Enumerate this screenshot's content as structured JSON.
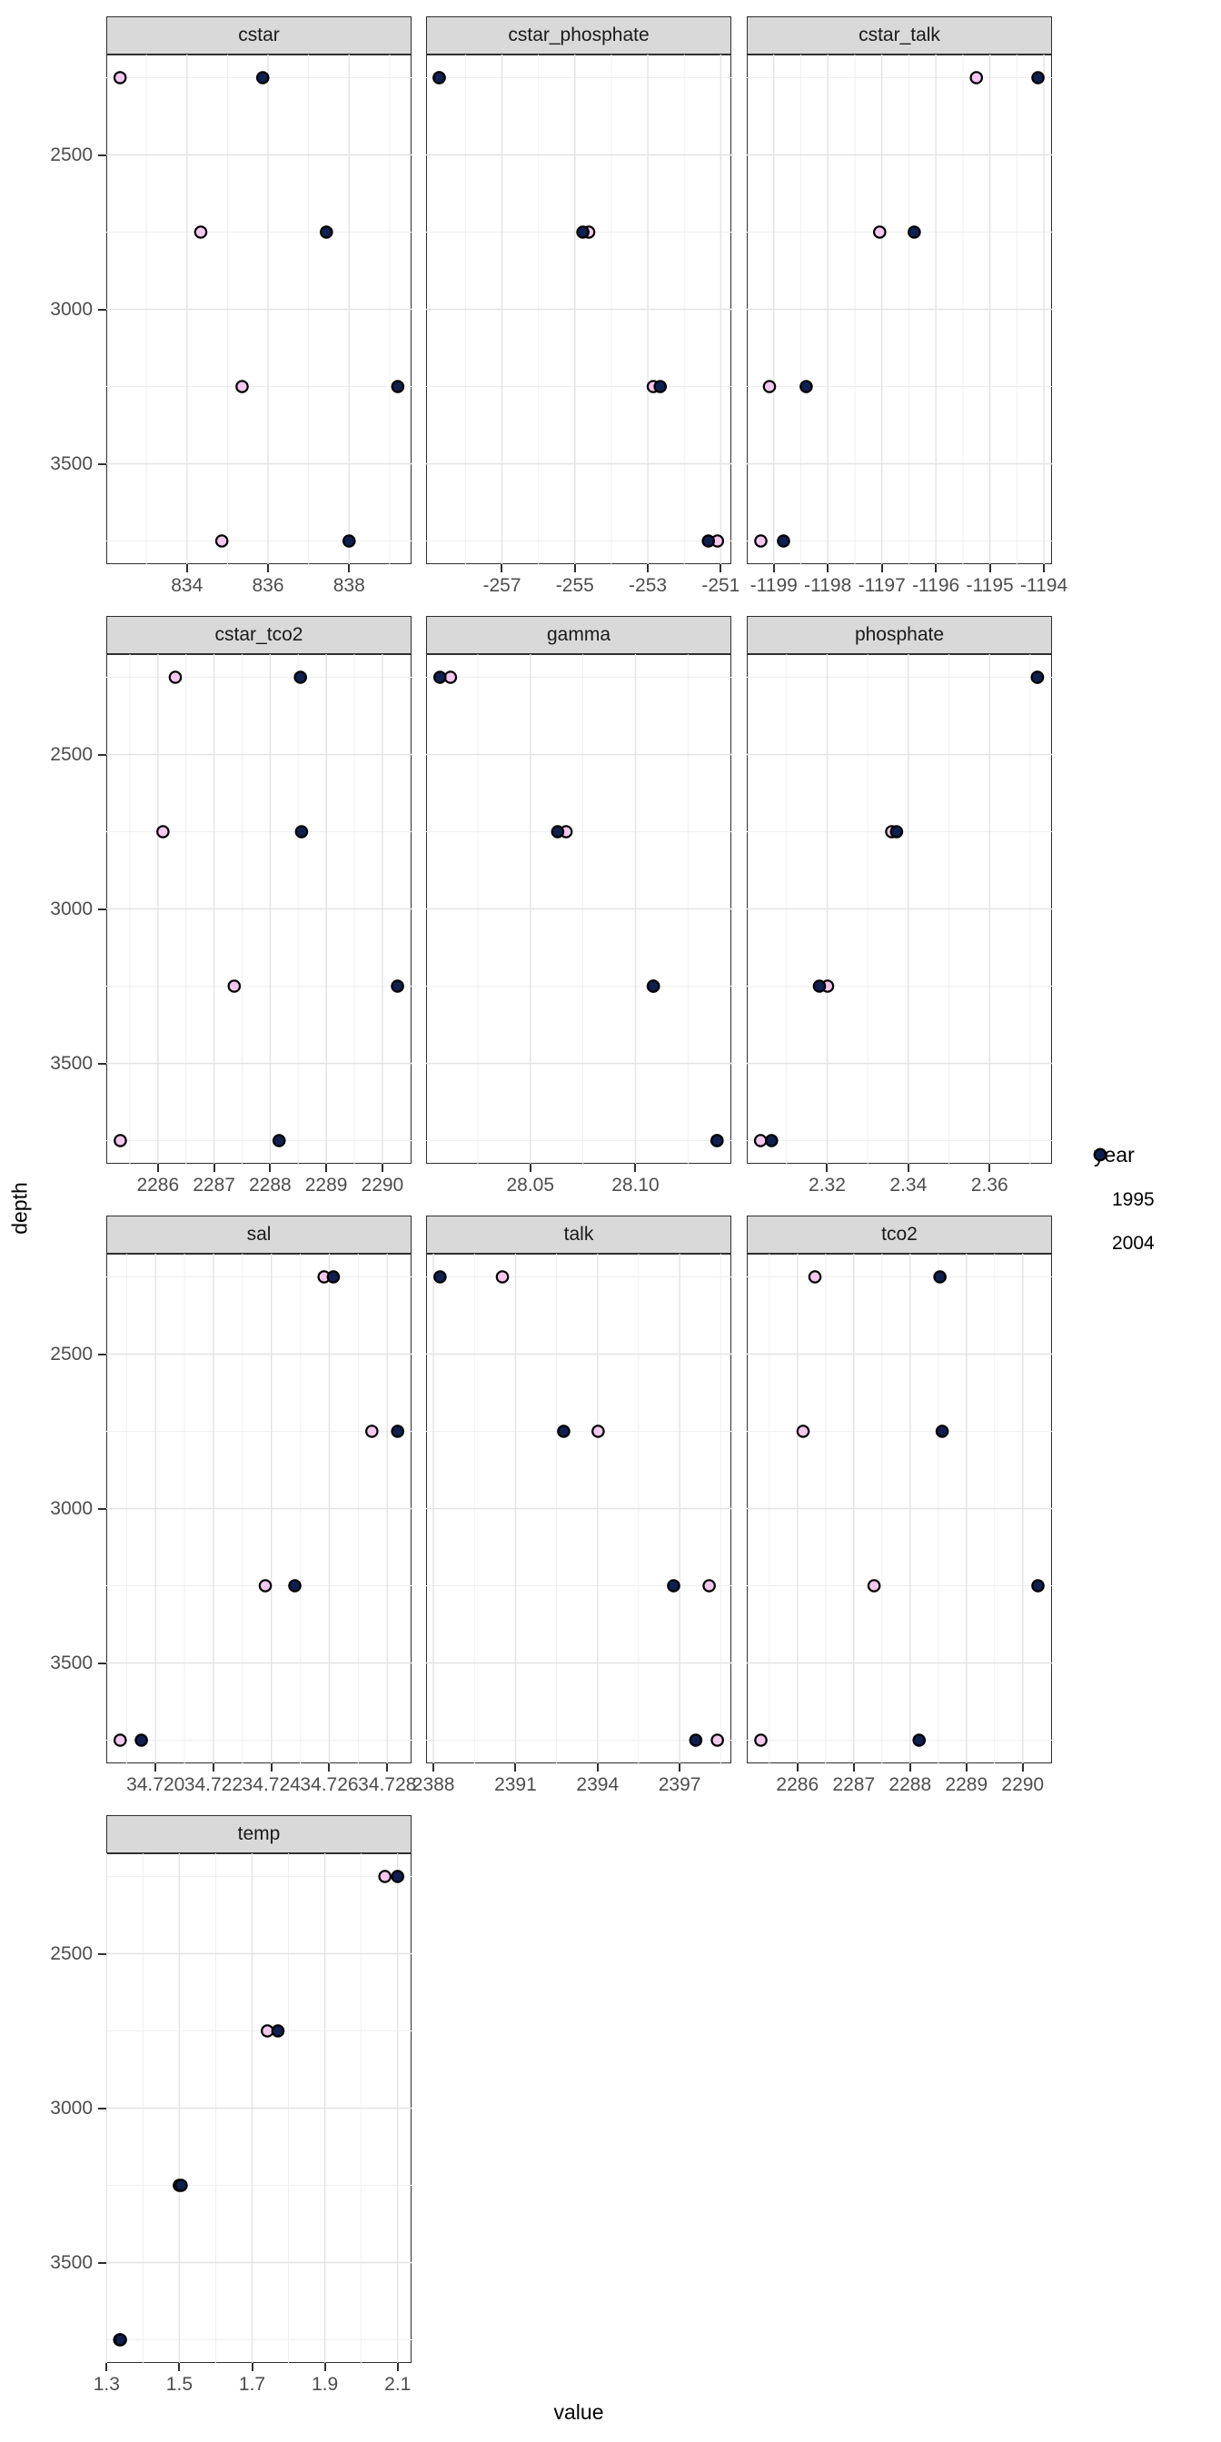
{
  "axes": {
    "x_label": "value",
    "y_label": "depth",
    "y_ticks": [
      "2500",
      "3000",
      "3500"
    ],
    "y_tick_values": [
      2500,
      3000,
      3500
    ],
    "y_minor_values": [
      2250,
      2750,
      3250,
      3750
    ],
    "y_domain": [
      2175,
      3825
    ]
  },
  "legend": {
    "title": "year",
    "items": [
      {
        "label": "1995",
        "fill": "#f4c7ee"
      },
      {
        "label": "2004",
        "fill": "#0f1f4f"
      }
    ]
  },
  "colors": {
    "point_stroke": "#000000",
    "panel_border": "#2f2f2f",
    "strip_fill": "#d9d9d9",
    "grid_major": "#e3e3e3",
    "grid_minor": "#efefef",
    "tick_label": "#4d4d4d"
  },
  "chart_data": {
    "type": "scatter",
    "facet_variable": "key",
    "x_label": "value",
    "y_label": "depth",
    "y_reversed": true,
    "depths": [
      2250,
      2750,
      3250,
      3750
    ],
    "series_names": [
      "1995",
      "2004"
    ],
    "series_colors": {
      "1995": "#f4c7ee",
      "2004": "#0f1f4f"
    },
    "facets": [
      {
        "name": "cstar",
        "xdomain": [
          832.01,
          839.54
        ],
        "ticks": [
          {
            "v": 834,
            "label": "834"
          },
          {
            "v": 836,
            "label": "836"
          },
          {
            "v": 838,
            "label": "838"
          }
        ],
        "minor": [
          833,
          835,
          837,
          839
        ],
        "series": {
          "1995": [
            832.35,
            834.34,
            835.36,
            834.86
          ],
          "2004": [
            835.87,
            837.44,
            839.2,
            838.0
          ]
        }
      },
      {
        "name": "cstar_phosphate",
        "xdomain": [
          -259.08,
          -250.71
        ],
        "ticks": [
          {
            "v": -257,
            "label": "-257"
          },
          {
            "v": -255,
            "label": "-255"
          },
          {
            "v": -253,
            "label": "-253"
          },
          {
            "v": -251,
            "label": "-251"
          }
        ],
        "minor": [
          -258,
          -256,
          -254,
          -252
        ],
        "series": {
          "1995": [
            -258.72,
            -254.62,
            -252.85,
            -251.09
          ],
          "2004": [
            -258.72,
            -254.78,
            -252.66,
            -251.34
          ]
        }
      },
      {
        "name": "cstar_talk",
        "xdomain": [
          -1199.5,
          -1193.85
        ],
        "ticks": [
          {
            "v": -1199,
            "label": "-1199"
          },
          {
            "v": -1198,
            "label": "-1198"
          },
          {
            "v": -1197,
            "label": "-1197"
          },
          {
            "v": -1196,
            "label": "-1196"
          },
          {
            "v": -1195,
            "label": "-1195"
          },
          {
            "v": -1194,
            "label": "-1194"
          }
        ],
        "minor": [
          -1198.5,
          -1197.5,
          -1196.5,
          -1195.5,
          -1194.5
        ],
        "series": {
          "1995": [
            -1195.25,
            -1197.04,
            -1199.08,
            -1199.24
          ],
          "2004": [
            -1194.11,
            -1196.4,
            -1198.4,
            -1198.82
          ]
        }
      },
      {
        "name": "cstar_tco2",
        "xdomain": [
          2285.08,
          2290.52
        ],
        "ticks": [
          {
            "v": 2286,
            "label": "2286"
          },
          {
            "v": 2287,
            "label": "2287"
          },
          {
            "v": 2288,
            "label": "2288"
          },
          {
            "v": 2289,
            "label": "2289"
          },
          {
            "v": 2290,
            "label": "2290"
          }
        ],
        "minor": [
          2285.5,
          2286.5,
          2287.5,
          2288.5,
          2289.5
        ],
        "series": {
          "1995": [
            2286.31,
            2286.09,
            2287.36,
            2285.33
          ],
          "2004": [
            2288.54,
            2288.56,
            2290.27,
            2288.16
          ]
        }
      },
      {
        "name": "gamma",
        "xdomain": [
          28.0004,
          28.1456
        ],
        "ticks": [
          {
            "v": 28.05,
            "label": "28.05"
          },
          {
            "v": 28.1,
            "label": "28.10"
          }
        ],
        "minor": [
          28.025,
          28.075,
          28.125
        ],
        "series": {
          "1995": [
            28.012,
            28.067,
            28.1085,
            28.1388
          ],
          "2004": [
            28.007,
            28.063,
            28.1085,
            28.1388
          ]
        }
      },
      {
        "name": "phosphate",
        "xdomain": [
          2.3002,
          2.3754
        ],
        "ticks": [
          {
            "v": 2.32,
            "label": "2.32"
          },
          {
            "v": 2.34,
            "label": "2.34"
          },
          {
            "v": 2.36,
            "label": "2.36"
          }
        ],
        "minor": [
          2.31,
          2.33,
          2.35,
          2.37
        ],
        "series": {
          "1995": [
            2.3718,
            2.3359,
            2.3201,
            2.3036
          ],
          "2004": [
            2.3718,
            2.3371,
            2.3181,
            2.3063
          ]
        }
      },
      {
        "name": "sal",
        "xdomain": [
          34.7183,
          34.72884
        ],
        "ticks": [
          {
            "v": 34.72,
            "label": "34.720"
          },
          {
            "v": 34.722,
            "label": "34.722"
          },
          {
            "v": 34.724,
            "label": "34.724"
          },
          {
            "v": 34.726,
            "label": "34.726"
          },
          {
            "v": 34.728,
            "label": "34.728"
          }
        ],
        "minor": [
          34.719,
          34.721,
          34.723,
          34.725,
          34.727
        ],
        "series": {
          "1995": [
            34.72582,
            34.72747,
            34.72379,
            34.71878
          ],
          "2004": [
            34.72614,
            34.72836,
            34.72481,
            34.71951
          ]
        }
      },
      {
        "name": "talk",
        "xdomain": [
          2387.73,
          2398.89
        ],
        "ticks": [
          {
            "v": 2388,
            "label": "2388"
          },
          {
            "v": 2391,
            "label": "2391"
          },
          {
            "v": 2394,
            "label": "2394"
          },
          {
            "v": 2397,
            "label": "2397"
          }
        ],
        "minor": [
          2389.5,
          2392.5,
          2395.5,
          2398.5
        ],
        "series": {
          "1995": [
            2390.52,
            2394.02,
            2398.08,
            2398.38
          ],
          "2004": [
            2388.24,
            2392.76,
            2396.78,
            2397.59
          ]
        }
      },
      {
        "name": "tco2",
        "xdomain": [
          2285.1,
          2290.52
        ],
        "ticks": [
          {
            "v": 2286,
            "label": "2286"
          },
          {
            "v": 2287,
            "label": "2287"
          },
          {
            "v": 2288,
            "label": "2288"
          },
          {
            "v": 2289,
            "label": "2289"
          },
          {
            "v": 2290,
            "label": "2290"
          }
        ],
        "minor": [
          2285.5,
          2286.5,
          2287.5,
          2288.5,
          2289.5
        ],
        "series": {
          "1995": [
            2286.31,
            2286.1,
            2287.36,
            2285.35
          ],
          "2004": [
            2288.53,
            2288.57,
            2290.27,
            2288.16
          ]
        }
      },
      {
        "name": "temp",
        "xdomain": [
          1.2992,
          2.1382
        ],
        "ticks": [
          {
            "v": 1.3,
            "label": "1.3"
          },
          {
            "v": 1.5,
            "label": "1.5"
          },
          {
            "v": 1.7,
            "label": "1.7"
          },
          {
            "v": 1.9,
            "label": "1.9"
          },
          {
            "v": 2.1,
            "label": "2.1"
          }
        ],
        "minor": [
          1.4,
          1.6,
          1.8,
          2.0
        ],
        "series": {
          "1995": [
            2.065,
            1.742,
            1.5,
            1.336
          ],
          "2004": [
            2.1,
            1.771,
            1.505,
            1.338
          ]
        }
      }
    ]
  }
}
